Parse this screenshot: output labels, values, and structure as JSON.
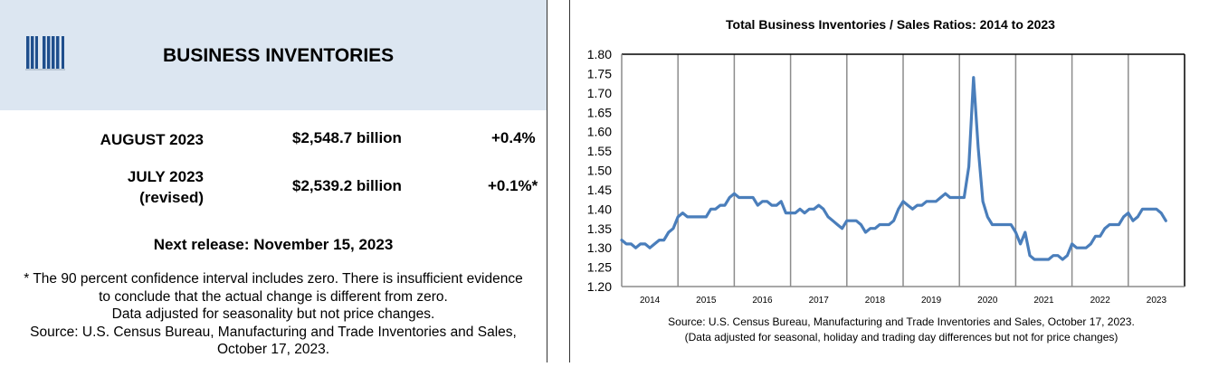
{
  "left": {
    "header": {
      "title": "BUSINESS INVENTORIES",
      "icon": "barcode-icon"
    },
    "rows": [
      {
        "period": "AUGUST 2023",
        "period_note": "",
        "value": "$2,548.7 billion",
        "change": "+0.4%"
      },
      {
        "period": "JULY 2023",
        "period_note": "(revised)",
        "value": "$2,539.2 billion",
        "change": "+0.1%*"
      }
    ],
    "next_release": "Next release: November 15, 2023",
    "footnote_lines": [
      "* The 90 percent confidence interval includes zero. There is insufficient evidence",
      "to conclude that the actual change is different from zero.",
      "Data adjusted for seasonality but not price changes.",
      "Source: U.S. Census Bureau, Manufacturing and Trade Inventories and Sales,",
      "October 17, 2023."
    ]
  },
  "colors": {
    "header_band": "#dce6f1",
    "line": "#4a7ebb",
    "barcode": "#1f4e8c"
  },
  "chart_data": {
    "type": "line",
    "title": "Total Business Inventories / Sales Ratios: 2014 to 2023",
    "xlabel": "",
    "ylabel": "",
    "ylim": [
      1.2,
      1.8
    ],
    "yticks": [
      "1.80",
      "1.75",
      "1.70",
      "1.65",
      "1.60",
      "1.55",
      "1.50",
      "1.45",
      "1.40",
      "1.35",
      "1.30",
      "1.25",
      "1.20"
    ],
    "year_labels": [
      "2014",
      "2015",
      "2016",
      "2017",
      "2018",
      "2019",
      "2020",
      "2021",
      "2022",
      "2023"
    ],
    "x_start": "2014-01",
    "x_end": "2023-12",
    "grid": "vertical year lines",
    "legend": "none",
    "series": [
      {
        "name": "Inventories/Sales Ratio",
        "frequency": "monthly",
        "start": "2014-01",
        "values": [
          1.32,
          1.31,
          1.31,
          1.3,
          1.31,
          1.31,
          1.3,
          1.31,
          1.32,
          1.32,
          1.34,
          1.35,
          1.38,
          1.39,
          1.38,
          1.38,
          1.38,
          1.38,
          1.38,
          1.4,
          1.4,
          1.41,
          1.41,
          1.43,
          1.44,
          1.43,
          1.43,
          1.43,
          1.43,
          1.41,
          1.42,
          1.42,
          1.41,
          1.41,
          1.42,
          1.39,
          1.39,
          1.39,
          1.4,
          1.39,
          1.4,
          1.4,
          1.41,
          1.4,
          1.38,
          1.37,
          1.36,
          1.35,
          1.37,
          1.37,
          1.37,
          1.36,
          1.34,
          1.35,
          1.35,
          1.36,
          1.36,
          1.36,
          1.37,
          1.4,
          1.42,
          1.41,
          1.4,
          1.41,
          1.41,
          1.42,
          1.42,
          1.42,
          1.43,
          1.44,
          1.43,
          1.43,
          1.43,
          1.43,
          1.51,
          1.74,
          1.56,
          1.42,
          1.38,
          1.36,
          1.36,
          1.36,
          1.36,
          1.36,
          1.34,
          1.31,
          1.34,
          1.28,
          1.27,
          1.27,
          1.27,
          1.27,
          1.28,
          1.28,
          1.27,
          1.28,
          1.31,
          1.3,
          1.3,
          1.3,
          1.31,
          1.33,
          1.33,
          1.35,
          1.36,
          1.36,
          1.36,
          1.38,
          1.39,
          1.37,
          1.38,
          1.4,
          1.4,
          1.4,
          1.4,
          1.39,
          1.37
        ]
      }
    ],
    "source_lines": [
      "Source: U.S. Census Bureau, Manufacturing and Trade Inventories and Sales, October 17, 2023.",
      "(Data adjusted for seasonal, holiday and trading day differences but not for price changes)"
    ]
  }
}
